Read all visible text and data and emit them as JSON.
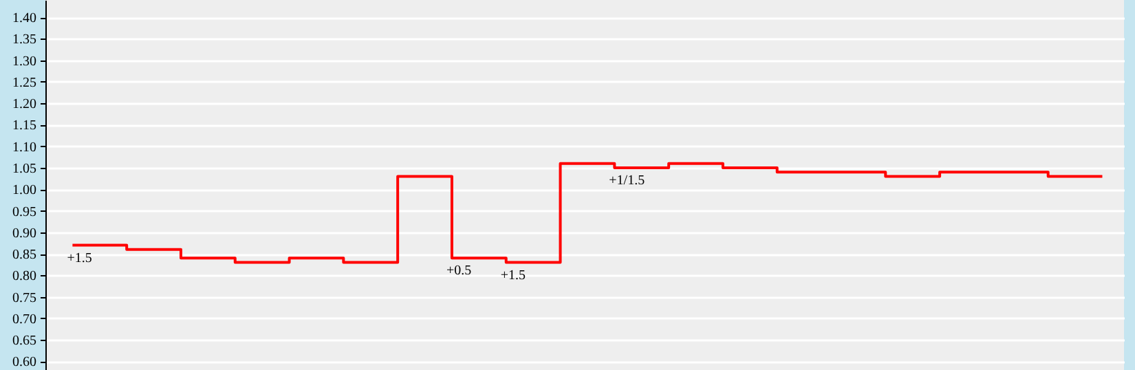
{
  "chart_data": {
    "type": "step",
    "categories": [
      null,
      null,
      null,
      null,
      null,
      null,
      null,
      null,
      null,
      null,
      null,
      null,
      null,
      null,
      null,
      null,
      null,
      null,
      null,
      null
    ],
    "series": [
      {
        "color": "#ff0000",
        "values": [
          0.87,
          0.86,
          0.84,
          0.83,
          0.84,
          0.83,
          1.03,
          0.84,
          0.83,
          1.06,
          1.05,
          1.06,
          1.05,
          1.04,
          1.04,
          1.03,
          1.04,
          1.04,
          1.03,
          1.03
        ]
      }
    ],
    "ylim": [
      0.58,
      1.44
    ],
    "yticks": [
      {
        "value": 0.6,
        "label": "0.60"
      },
      {
        "value": 0.65,
        "label": "0.65"
      },
      {
        "value": 0.7,
        "label": "0.70"
      },
      {
        "value": 0.75,
        "label": "0.75"
      },
      {
        "value": 0.8,
        "label": "0.80"
      },
      {
        "value": 0.85,
        "label": "0.85"
      },
      {
        "value": 0.9,
        "label": "0.90"
      },
      {
        "value": 0.95,
        "label": "0.95"
      },
      {
        "value": 1.0,
        "label": "1.00"
      },
      {
        "value": 1.05,
        "label": "1.05"
      },
      {
        "value": 1.1,
        "label": "1.10"
      },
      {
        "value": 1.15,
        "label": "1.15"
      },
      {
        "value": 1.2,
        "label": "1.20"
      },
      {
        "value": 1.25,
        "label": "1.25"
      },
      {
        "value": 1.3,
        "label": "1.30"
      },
      {
        "value": 1.35,
        "label": "1.35"
      },
      {
        "value": 1.4,
        "label": "1.40"
      }
    ],
    "annotations": [
      "+1.5",
      "+0.5",
      "+1.5",
      "+1/1.5"
    ],
    "grid": "y",
    "tick_labels": "y"
  }
}
